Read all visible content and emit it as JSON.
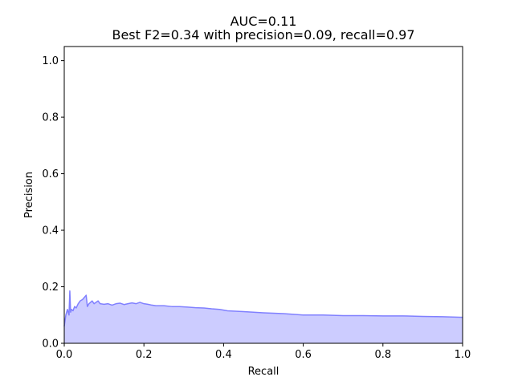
{
  "chart_data": {
    "type": "area",
    "title": "AUC=0.11",
    "subtitle": "Best F2=0.34 with precision=0.09, recall=0.97",
    "xlabel": "Recall",
    "ylabel": "Precision",
    "xlim": [
      0.0,
      1.0
    ],
    "ylim": [
      0.0,
      1.05
    ],
    "x_ticks": [
      0.0,
      0.2,
      0.4,
      0.6,
      0.8,
      1.0
    ],
    "x_tick_labels": [
      "0.0",
      "0.2",
      "0.4",
      "0.6",
      "0.8",
      "1.0"
    ],
    "y_ticks": [
      0.0,
      0.2,
      0.4,
      0.6,
      0.8,
      1.0
    ],
    "y_tick_labels": [
      "0.0",
      "0.2",
      "0.4",
      "0.6",
      "0.8",
      "1.0"
    ],
    "grid": false,
    "legend": "none",
    "line_color": "#8080ff",
    "fill_color": "#ccccff",
    "x": [
      0.0,
      0.004,
      0.008,
      0.012,
      0.014,
      0.016,
      0.018,
      0.022,
      0.026,
      0.03,
      0.035,
      0.04,
      0.046,
      0.052,
      0.055,
      0.058,
      0.062,
      0.066,
      0.07,
      0.075,
      0.08,
      0.085,
      0.09,
      0.1,
      0.11,
      0.12,
      0.13,
      0.14,
      0.15,
      0.16,
      0.17,
      0.18,
      0.19,
      0.2,
      0.21,
      0.22,
      0.23,
      0.25,
      0.27,
      0.29,
      0.31,
      0.33,
      0.35,
      0.37,
      0.39,
      0.41,
      0.45,
      0.5,
      0.55,
      0.6,
      0.65,
      0.7,
      0.75,
      0.8,
      0.85,
      0.9,
      0.95,
      1.0
    ],
    "y": [
      0.06,
      0.1,
      0.12,
      0.1,
      0.185,
      0.11,
      0.12,
      0.115,
      0.13,
      0.125,
      0.14,
      0.15,
      0.155,
      0.165,
      0.17,
      0.13,
      0.14,
      0.145,
      0.15,
      0.14,
      0.145,
      0.15,
      0.14,
      0.138,
      0.14,
      0.135,
      0.14,
      0.142,
      0.137,
      0.14,
      0.143,
      0.14,
      0.145,
      0.14,
      0.138,
      0.135,
      0.133,
      0.133,
      0.13,
      0.13,
      0.128,
      0.126,
      0.125,
      0.122,
      0.12,
      0.115,
      0.112,
      0.108,
      0.105,
      0.1,
      0.1,
      0.098,
      0.098,
      0.097,
      0.097,
      0.095,
      0.094,
      0.092
    ]
  }
}
